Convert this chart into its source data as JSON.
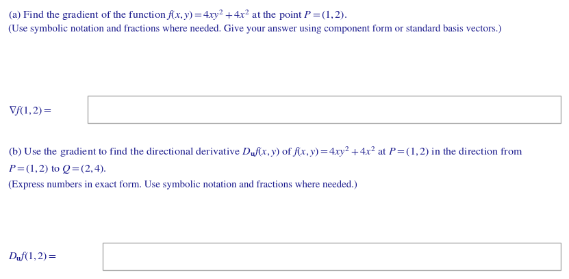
{
  "background_color": "#ffffff",
  "text_color": "#1a1a8c",
  "figsize": [
    8.31,
    4.08
  ],
  "dpi": 100,
  "font_size_main": 11.5,
  "font_size_small": 10.8,
  "box_edge_color": "#aaaaaa",
  "box_fill": "#ffffff",
  "line_a_title": "(a) Find the gradient of the function $f(x, y) = 4xy^2 + 4x^2$ at the point $P = (1, 2)$.",
  "line_a_sub": "(Use symbolic notation and fractions where needed. Give your answer using component form or standard basis vectors.)",
  "label_a": "$\\nabla f(1, 2) =$",
  "line_b_title": "(b) Use the gradient to find the directional derivative $D_{\\mathbf{u}}f(x, y)$ of $f(x, y) = 4xy^2 + 4x^2$ at $P = (1, 2)$ in the direction from",
  "line_b_cont": "$P = (1, 2)$ to $Q = (2, 4)$.",
  "line_b_sub": "(Express numbers in exact form. Use symbolic notation and fractions where needed.)",
  "label_b": "$D_{\\mathbf{u}}f(1, 2) =$"
}
